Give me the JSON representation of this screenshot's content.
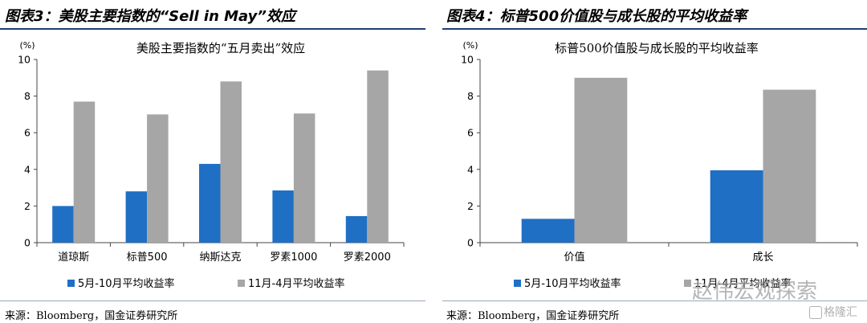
{
  "figure_left": {
    "title": "图表3：美股主要指数的“Sell in May”效应",
    "source": "来源：Bloomberg，国金证券研究所"
  },
  "figure_right": {
    "title": "图表4：标普500价值股与成长股的平均收益率",
    "source": "来源：Bloomberg，国金证券研究所"
  },
  "watermark": {
    "text": "赵伟宏观探索",
    "badge": "格隆汇"
  },
  "colors": {
    "blue": "#1f6fc5",
    "gray": "#a6a6a6",
    "rule": "#1f3f73"
  },
  "chart_data": [
    {
      "type": "bar",
      "title": "美股主要指数的“五月卖出”效应",
      "unit_label": "(%)",
      "categories": [
        "道琼斯",
        "标普500",
        "纳斯达克",
        "罗素1000",
        "罗素2000"
      ],
      "series": [
        {
          "name": "5月-10月平均收益率",
          "values": [
            2.0,
            2.8,
            4.3,
            2.85,
            1.45
          ]
        },
        {
          "name": "11月-4月平均收益率",
          "values": [
            7.7,
            7.0,
            8.8,
            7.05,
            9.4
          ]
        }
      ],
      "ylim": [
        0,
        10
      ],
      "yticks": [
        0,
        2,
        4,
        6,
        8,
        10
      ],
      "legend": "bottom",
      "grid": false
    },
    {
      "type": "bar",
      "title": "标普500价值股与成长股的平均收益率",
      "unit_label": "(%)",
      "categories": [
        "价值",
        "成长"
      ],
      "series": [
        {
          "name": "5月-10月平均收益率",
          "values": [
            1.3,
            3.95
          ]
        },
        {
          "name": "11月-4月平均收益率",
          "values": [
            9.0,
            8.35
          ]
        }
      ],
      "ylim": [
        0,
        10
      ],
      "yticks": [
        0,
        2,
        4,
        6,
        8,
        10
      ],
      "legend": "bottom",
      "grid": false
    }
  ]
}
